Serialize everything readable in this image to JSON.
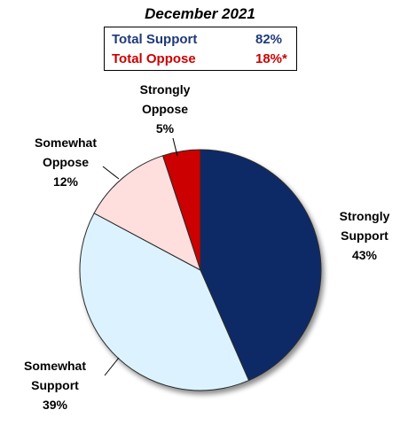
{
  "title": "December 2021",
  "summary": [
    {
      "label": "Total Support",
      "value": "82%",
      "color": "#1f3a78"
    },
    {
      "label": "Total Oppose",
      "value": "18%*",
      "color": "#cc0000"
    }
  ],
  "chart_data": {
    "type": "pie",
    "title": "December 2021",
    "slices": [
      {
        "label": "Strongly Support",
        "value": 43,
        "display": "43%",
        "color": "#0f2a66"
      },
      {
        "label": "Somewhat Support",
        "value": 39,
        "display": "39%",
        "color": "#dcf3ff"
      },
      {
        "label": "Somewhat Oppose",
        "value": 12,
        "display": "12%",
        "color": "#ffdede"
      },
      {
        "label": "Strongly Oppose",
        "value": 5,
        "display": "5%",
        "color": "#cc0000"
      }
    ],
    "start_angle": "12 o'clock",
    "direction": "clockwise"
  }
}
